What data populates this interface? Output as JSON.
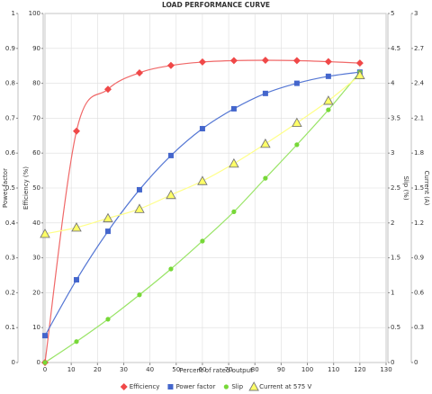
{
  "chart_data": {
    "type": "line",
    "title": "LOAD PERFORMANCE CURVE",
    "x_label": "Percent of rated output",
    "x": [
      0,
      12,
      24,
      36,
      48,
      60,
      72,
      84,
      96,
      108,
      120
    ],
    "xlim": [
      0,
      130
    ],
    "xticks": [
      0,
      10,
      20,
      30,
      40,
      50,
      60,
      70,
      80,
      90,
      100,
      110,
      120,
      130
    ],
    "grid": true,
    "y_axes": [
      {
        "label": "Power factor",
        "side": "left",
        "lim": [
          0,
          1
        ],
        "ticks": [
          0,
          0.1,
          0.2,
          0.3,
          0.4,
          0.5,
          0.6,
          0.7,
          0.8,
          0.9,
          1
        ]
      },
      {
        "label": "Efficiency (%)",
        "side": "left",
        "lim": [
          0,
          100
        ],
        "ticks": [
          0,
          10,
          20,
          30,
          40,
          50,
          60,
          70,
          80,
          90,
          100
        ]
      },
      {
        "label": "Slip (%)",
        "side": "right",
        "lim": [
          0,
          5
        ],
        "ticks": [
          0,
          0.5,
          1,
          1.5,
          2,
          2.5,
          3,
          3.5,
          4,
          4.5,
          5
        ]
      },
      {
        "label": "Current (A)",
        "side": "right",
        "lim": [
          0,
          3
        ],
        "ticks": [
          0,
          0.3,
          0.6,
          0.9,
          1.2,
          1.5,
          1.8,
          2.1,
          2.4,
          2.7,
          3
        ]
      }
    ],
    "series": [
      {
        "name": "Efficiency",
        "axis": 1,
        "marker": "diamond",
        "color": "#f04848",
        "line_color": "#f06868",
        "values": [
          0,
          66.3,
          78.3,
          83,
          85.1,
          86.1,
          86.5,
          86.6,
          86.5,
          86.2,
          85.8
        ]
      },
      {
        "name": "Power factor",
        "axis": 0,
        "marker": "square",
        "color": "#4466cc",
        "line_color": "#5577d4",
        "values": [
          0.077,
          0.237,
          0.376,
          0.495,
          0.593,
          0.67,
          0.727,
          0.771,
          0.8,
          0.82,
          0.832
        ]
      },
      {
        "name": "Slip",
        "axis": 2,
        "marker": "circle",
        "color": "#77d838",
        "line_color": "#99e466",
        "values": [
          0,
          0.3,
          0.62,
          0.97,
          1.34,
          1.74,
          2.16,
          2.64,
          3.12,
          3.62,
          4.16
        ]
      },
      {
        "name": "Current at 575 V",
        "axis": 3,
        "marker": "triangle",
        "color": "#ffff66",
        "line_color": "#ffff88",
        "values": [
          1.106,
          1.16,
          1.24,
          1.32,
          1.44,
          1.56,
          1.71,
          1.88,
          2.06,
          2.25,
          2.47
        ]
      }
    ]
  }
}
